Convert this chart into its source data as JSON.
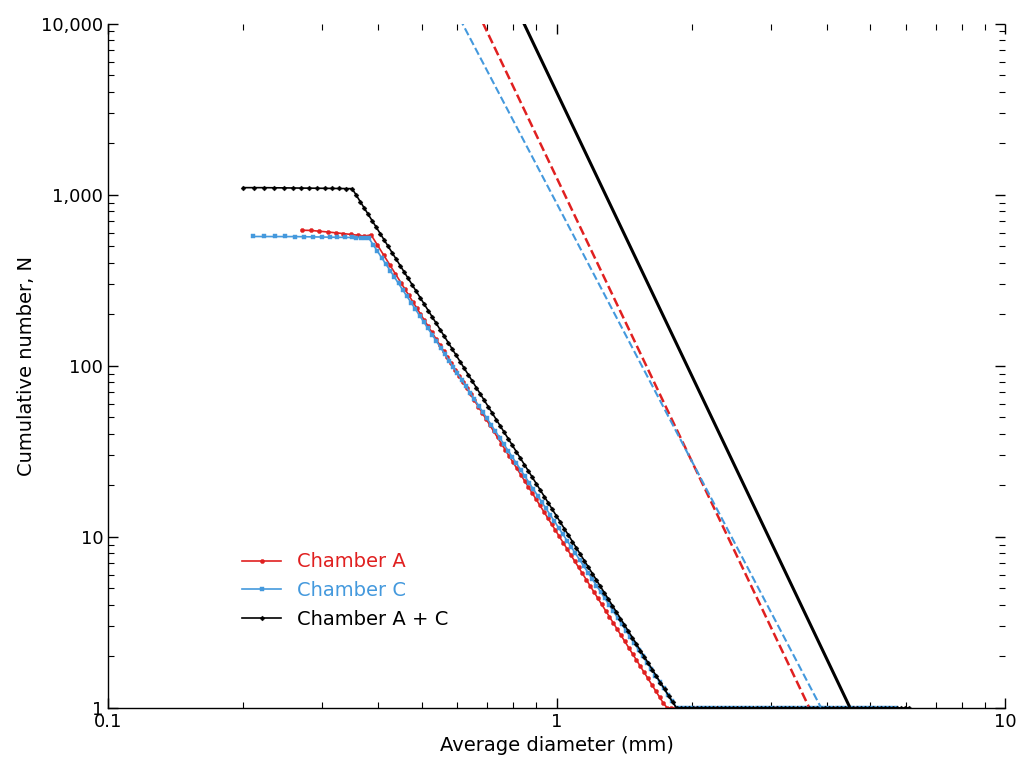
{
  "xlabel": "Average diameter (mm)",
  "ylabel": "Cumulative number, N",
  "xlim": [
    0.1,
    10
  ],
  "ylim": [
    1,
    10000
  ],
  "bg_color": "#ffffff",
  "chamber_A_color": "#e02020",
  "chamber_C_color": "#4499dd",
  "chamber_AC_color": "#000000",
  "fit_A_slope": -5.5,
  "fit_A_b": 3.1,
  "fit_A_x0": 0.45,
  "fit_A_x1": 5.5,
  "fit_C_slope": -5.0,
  "fit_C_b": 2.95,
  "fit_C_x0": 0.3,
  "fit_C_x1": 8.5,
  "fit_AC_slope": -5.5,
  "fit_AC_b": 3.6,
  "fit_AC_x0": 0.45,
  "fit_AC_x1": 8.0
}
